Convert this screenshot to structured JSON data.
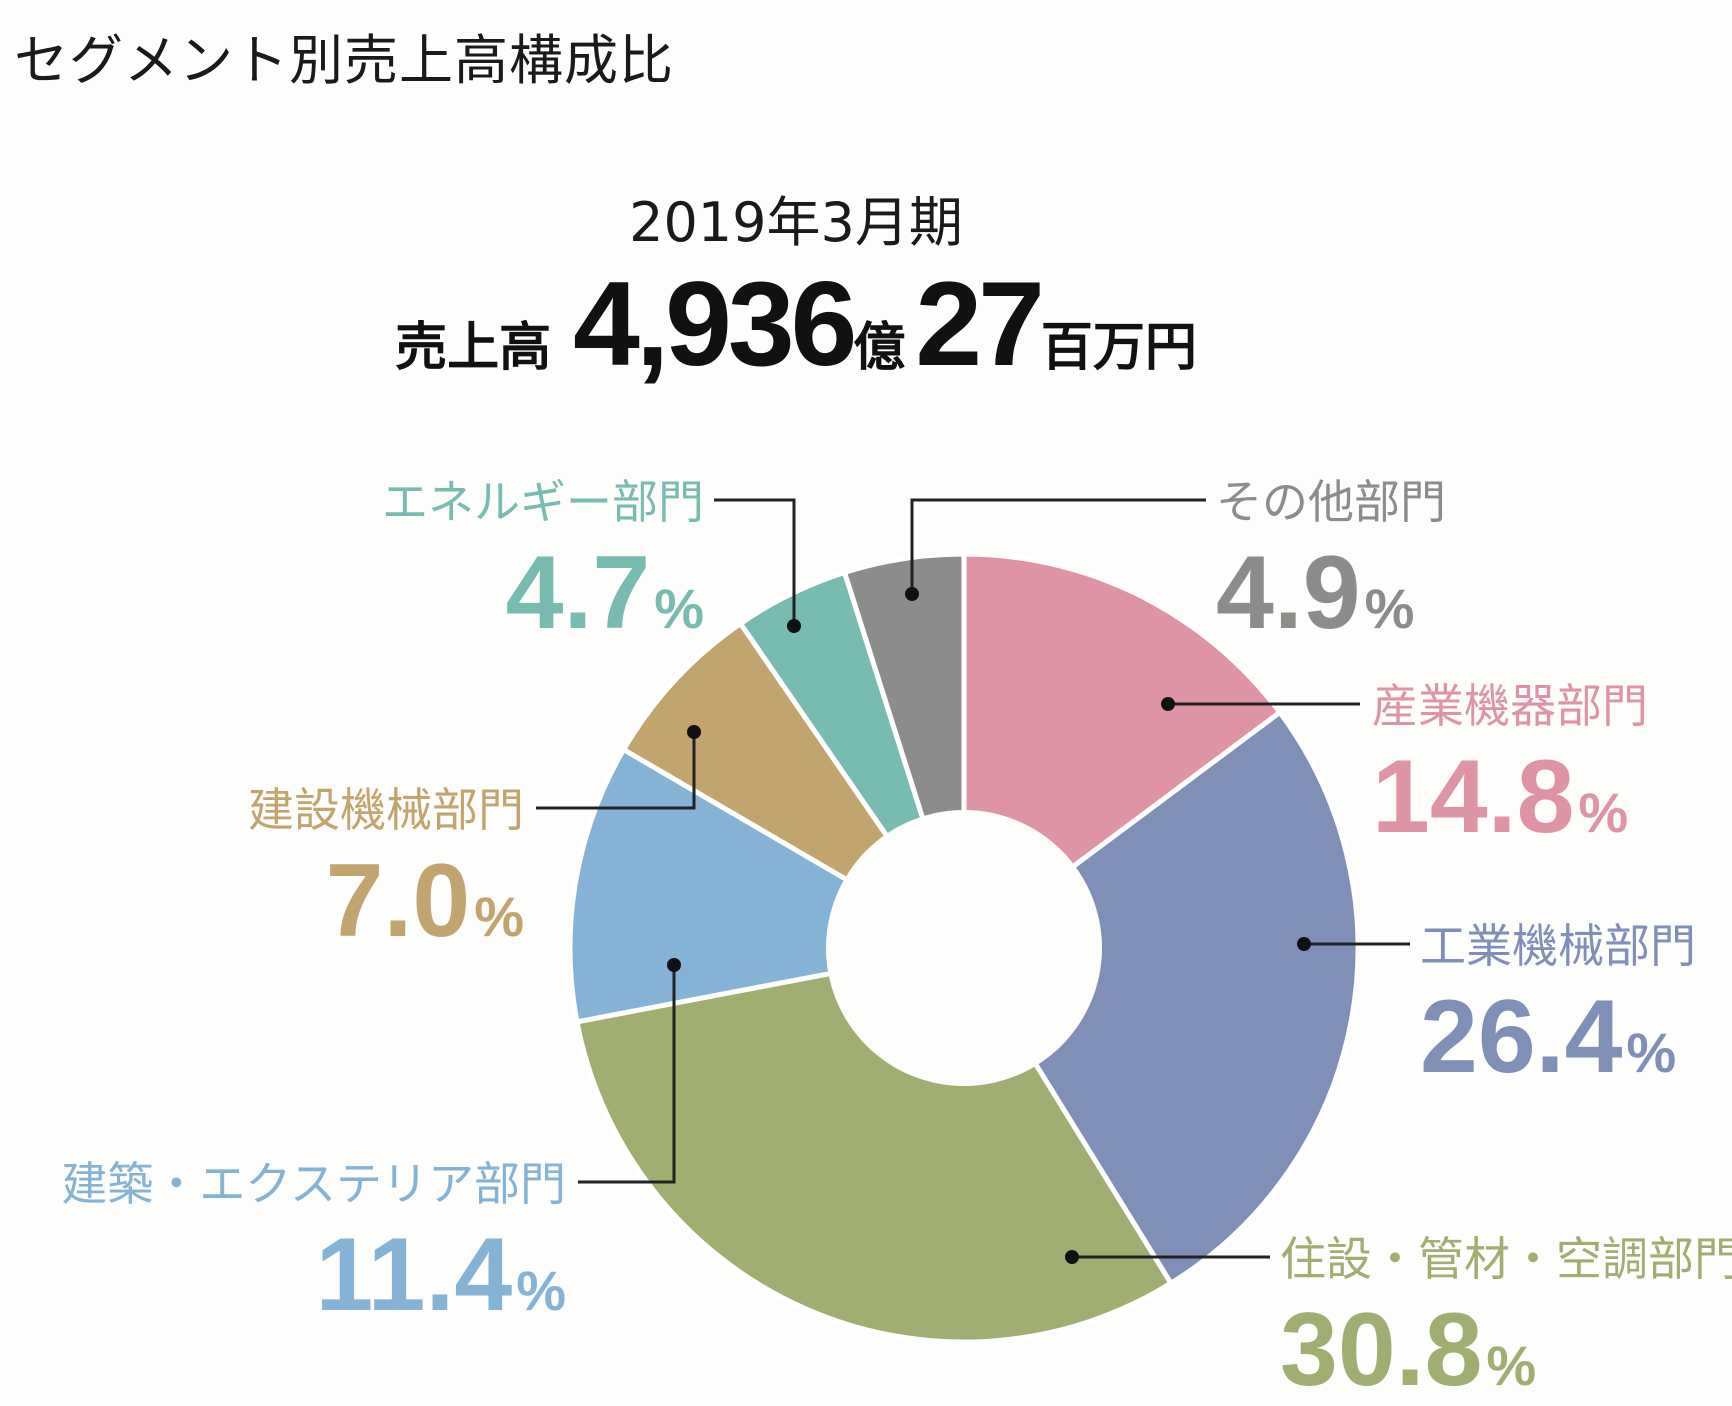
{
  "header": {
    "title": "セグメント別売上高構成比",
    "period": "2019年3月期",
    "sales_label": "売上高",
    "sales_oku": "4,936",
    "sales_oku_unit": "億",
    "sales_hyakuman": "27",
    "sales_hyakuman_unit": "百万円"
  },
  "chart_data": {
    "type": "pie",
    "donut": true,
    "order": "clockwise from 12 o'clock",
    "unit": "%",
    "slices": [
      {
        "label": "産業機器部門",
        "value": 14.8,
        "color": "#df94a5"
      },
      {
        "label": "工業機械部門",
        "value": 26.4,
        "color": "#7f8fb7"
      },
      {
        "label": "住設・管材・空調部門",
        "value": 30.8,
        "color": "#a0ae72"
      },
      {
        "label": "建築・エクステリア部門",
        "value": 11.4,
        "color": "#84b3d6"
      },
      {
        "label": "建設機械部門",
        "value": 7.0,
        "color": "#c2a56e"
      },
      {
        "label": "エネルギー部門",
        "value": 4.7,
        "color": "#78bbb0"
      },
      {
        "label": "その他部門",
        "value": 4.9,
        "color": "#8c8c8a"
      }
    ]
  }
}
